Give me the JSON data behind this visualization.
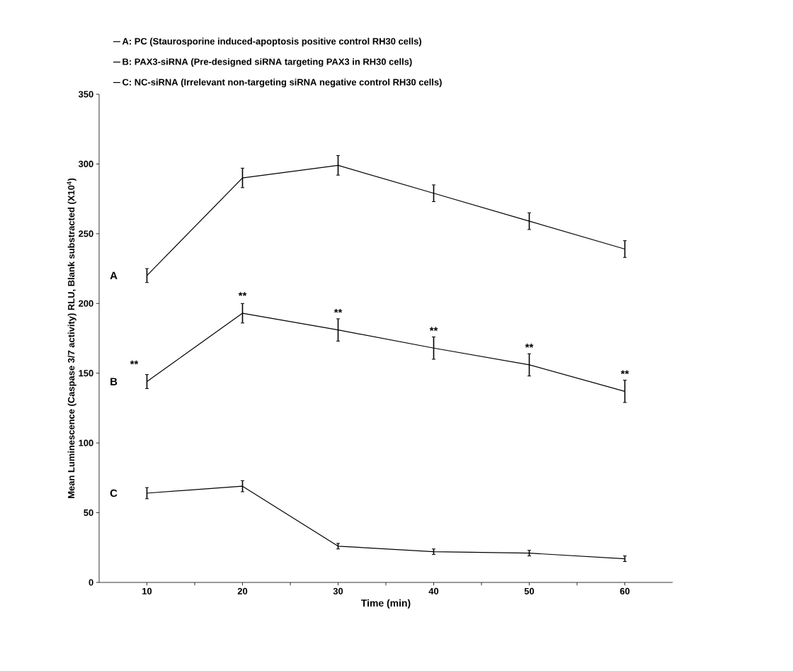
{
  "chart_data": {
    "type": "line",
    "xlabel": "Time (min)",
    "ylabel": "Mean Luminescence (Caspase 3/7 activity) RLU, Blank substracted (X10$^{4}$)",
    "x": [
      10,
      20,
      30,
      40,
      50,
      60
    ],
    "series": [
      {
        "name": "A: PC (Staurosporine induced-apoptosis positive control RH30 cells)",
        "color": "#000000",
        "values": [
          220,
          290,
          299,
          279,
          259,
          239
        ],
        "errors": [
          5,
          7,
          7,
          6,
          6,
          6
        ]
      },
      {
        "name": "B: PAX3-siRNA (Pre-designed siRNA targeting PAX3 in RH30 cells)",
        "color": "#000000",
        "values": [
          144,
          193,
          181,
          168,
          156,
          137
        ],
        "errors": [
          5,
          7,
          8,
          8,
          8,
          8
        ]
      },
      {
        "name": "C: NC-siRNA (Irrelevant non-targeting siRNA negative control RH30 cells)",
        "color": "#000000",
        "values": [
          64,
          69,
          26,
          22,
          21,
          17
        ],
        "errors": [
          4,
          4,
          2,
          2,
          2,
          2
        ]
      }
    ],
    "xlim": [
      5,
      65
    ],
    "xticks": [
      10,
      {
        "value": 15,
        "label": null
      },
      20,
      {
        "value": 25,
        "label": null
      },
      30,
      {
        "value": 35,
        "label": null
      },
      40,
      {
        "value": 45,
        "label": null
      },
      50,
      {
        "value": 55,
        "label": null
      },
      60
    ],
    "ylim": [
      0,
      350
    ],
    "yticks": [
      0,
      50,
      100,
      150,
      200,
      250,
      300,
      350
    ],
    "annotations": [
      {
        "text": "A",
        "x": 10,
        "y": 220
      },
      {
        "text": "B",
        "x": 10,
        "y": 144
      },
      {
        "text": "C",
        "x": 10,
        "y": 64
      },
      {
        "text": "**",
        "x": 10,
        "y": 144
      },
      {
        "text": "**",
        "x": 20,
        "y": 193
      },
      {
        "text": "**",
        "x": 30,
        "y": 181
      },
      {
        "text": "**",
        "x": 40,
        "y": 168
      },
      {
        "text": "**",
        "x": 50,
        "y": 156
      },
      {
        "text": "**",
        "x": 60,
        "y": 137
      }
    ],
    "legend": "top",
    "marker": "none",
    "line_style": "solid",
    "grid": false
  }
}
